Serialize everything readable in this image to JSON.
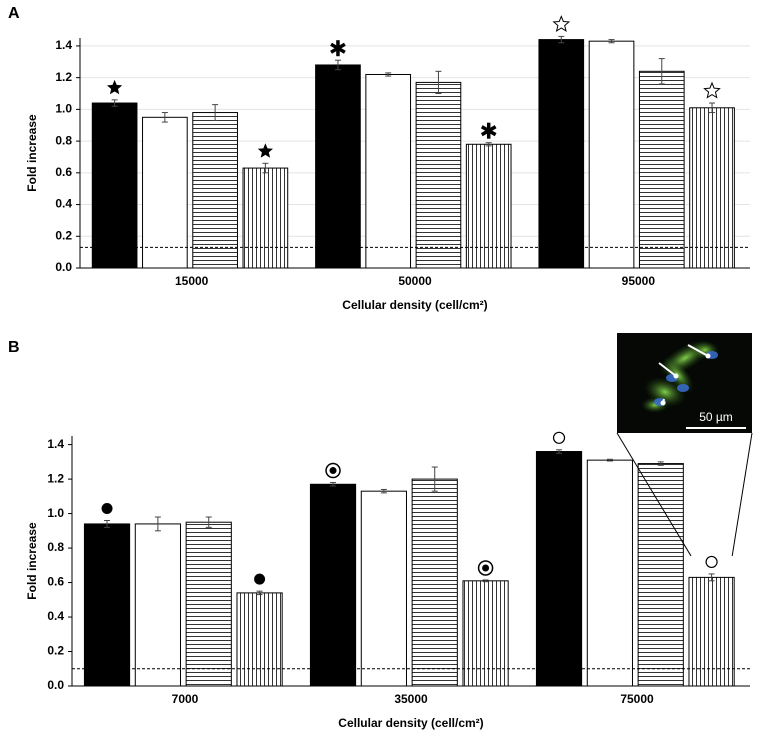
{
  "chart_data": [
    {
      "type": "bar",
      "panel": "A",
      "ylabel": "Fold increase",
      "xlabel": "Cellular density (cell/cm²)",
      "categories": [
        "15000",
        "50000",
        "95000"
      ],
      "series": [
        {
          "color": "#000000",
          "pattern": "solid",
          "values": [
            1.04,
            1.28,
            1.44
          ],
          "errors": [
            0.02,
            0.03,
            0.02
          ]
        },
        {
          "color": "#ffffff",
          "pattern": "solid",
          "values": [
            0.95,
            1.22,
            1.43
          ],
          "errors": [
            0.03,
            0.01,
            0.01
          ]
        },
        {
          "color": "#000000",
          "pattern": "horizontal",
          "values": [
            0.98,
            1.17,
            1.24
          ],
          "errors": [
            0.05,
            0.07,
            0.08
          ]
        },
        {
          "color": "#000000",
          "pattern": "vertical",
          "values": [
            0.63,
            0.78,
            1.01
          ],
          "errors": [
            0.03,
            0.01,
            0.03
          ]
        }
      ],
      "markers": [
        {
          "series": 0,
          "category": 0,
          "symbol": "star"
        },
        {
          "series": 3,
          "category": 0,
          "symbol": "star"
        },
        {
          "series": 0,
          "category": 1,
          "symbol": "asterisk"
        },
        {
          "series": 3,
          "category": 1,
          "symbol": "asterisk"
        },
        {
          "series": 0,
          "category": 2,
          "symbol": "open-star"
        },
        {
          "series": 3,
          "category": 2,
          "symbol": "open-star"
        }
      ],
      "threshold": 0.13,
      "ylim": [
        0,
        1.45
      ],
      "yticks": [
        {
          "value": 0,
          "label": "0.0"
        },
        0.2,
        0.4,
        0.6,
        0.8,
        {
          "value": 1,
          "label": "1.0"
        },
        1.2,
        1.4
      ],
      "grid": true
    },
    {
      "type": "bar",
      "panel": "B",
      "ylabel": "Fold increase",
      "xlabel": "Cellular density (cell/cm²)",
      "categories": [
        "7000",
        "35000",
        "75000"
      ],
      "series": [
        {
          "color": "#000000",
          "pattern": "solid",
          "values": [
            0.94,
            1.17,
            1.36
          ],
          "errors": [
            0.02,
            0.01,
            0.01
          ]
        },
        {
          "color": "#ffffff",
          "pattern": "solid",
          "values": [
            0.94,
            1.13,
            1.31
          ],
          "errors": [
            0.04,
            0.01,
            0.005
          ]
        },
        {
          "color": "#000000",
          "pattern": "horizontal",
          "values": [
            0.95,
            1.2,
            1.29
          ],
          "errors": [
            0.03,
            0.07,
            0.01
          ]
        },
        {
          "color": "#000000",
          "pattern": "vertical",
          "values": [
            0.54,
            0.61,
            0.63
          ],
          "errors": [
            0.01,
            0.005,
            0.02
          ]
        }
      ],
      "markers": [
        {
          "series": 0,
          "category": 0,
          "symbol": "dot"
        },
        {
          "series": 3,
          "category": 0,
          "symbol": "dot"
        },
        {
          "series": 0,
          "category": 1,
          "symbol": "circled-dot"
        },
        {
          "series": 3,
          "category": 1,
          "symbol": "circled-dot"
        },
        {
          "series": 0,
          "category": 2,
          "symbol": "circle"
        },
        {
          "series": 3,
          "category": 2,
          "symbol": "circle"
        }
      ],
      "threshold": 0.1,
      "ylim": [
        0,
        1.45
      ],
      "yticks": [
        {
          "value": 0,
          "label": "0.0"
        },
        0.2,
        0.4,
        0.6,
        0.8,
        {
          "value": 1,
          "label": "1.0"
        },
        1.2,
        1.4
      ],
      "grid": false,
      "inset_label": "50 µm",
      "inset_series": 3,
      "inset_category": 2
    }
  ]
}
